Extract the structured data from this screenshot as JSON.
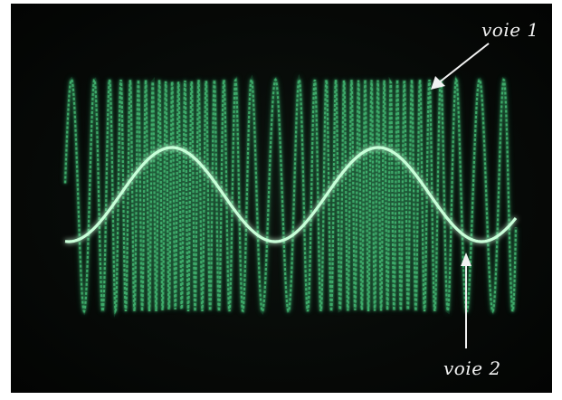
{
  "labels": {
    "voie1": "voie 1",
    "voie2": "voie 2"
  },
  "colors": {
    "screen_bg": "#070908",
    "trace_fm": "#3fae6b",
    "trace_fm_glow": "#1f6b40",
    "trace_sine": "#c9ffd9",
    "annotation": "#f2f2f2"
  },
  "scene": {
    "description_tags": [
      "oscilloscope-screen",
      "frequency-modulated-signal",
      "modulating-sine-wave"
    ]
  }
}
